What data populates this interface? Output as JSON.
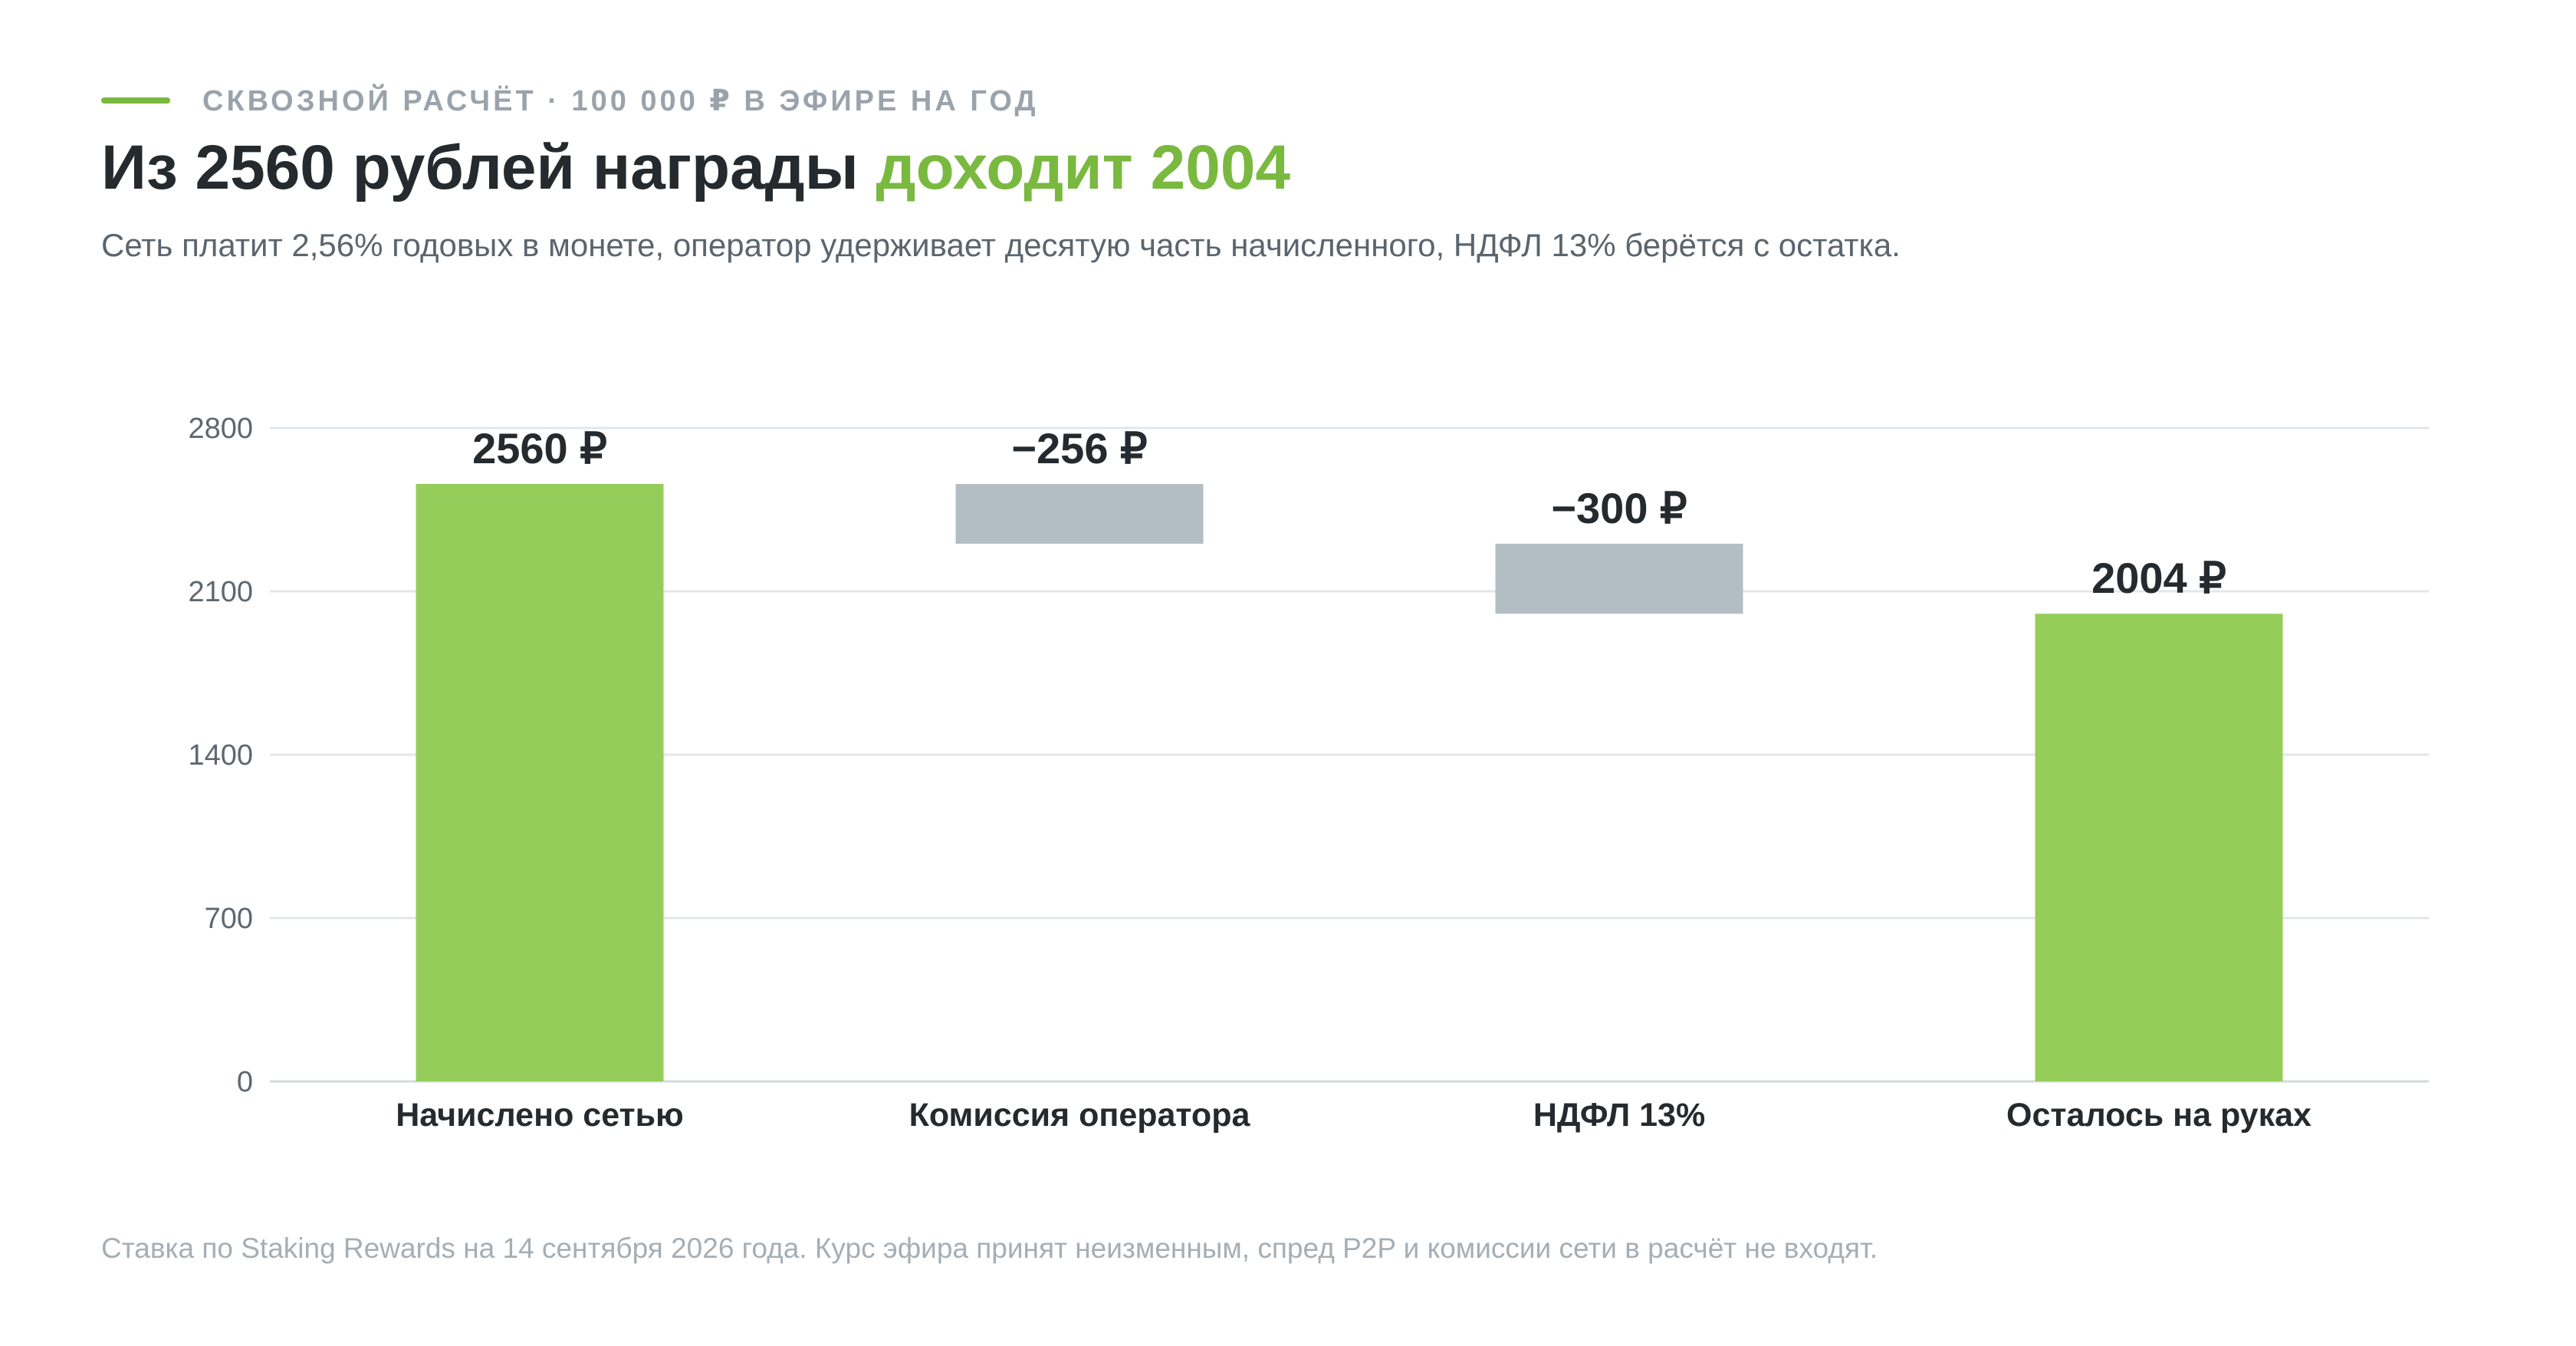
{
  "header": {
    "eyebrow": "СКВОЗНОЙ РАСЧЁТ · 100 000 ₽ В ЭФИРЕ НА ГОД",
    "title_main": "Из 2560 рублей награды ",
    "title_accent": "доходит 2004",
    "subtitle": "Сеть платит 2,56% годовых в монете, оператор удерживает десятую часть начисленного, НДФЛ 13% берётся с остатка."
  },
  "footnote": "Ставка по Staking Rewards на 14 сентября 2026 года. Курс эфира принят неизменным, спред P2P и комиссии сети в расчёт не входят.",
  "colors": {
    "accent": "#79b93f",
    "total_bar": "#95cd5a",
    "delta_bar": "#b3bec4",
    "grid": "#e3e7ea"
  },
  "chart_data": {
    "type": "bar",
    "subtype": "waterfall",
    "categories": [
      "Начислено сетью",
      "Комиссия оператора",
      "НДФЛ 13%",
      "Осталось на руках"
    ],
    "values": [
      2560,
      -256,
      -300,
      2004
    ],
    "kinds": [
      "total",
      "delta",
      "delta",
      "total"
    ],
    "data_labels": [
      "2560 ₽",
      "−256 ₽",
      "−300 ₽",
      "2004 ₽"
    ],
    "yticks": [
      0,
      700,
      1400,
      2100,
      2800
    ],
    "ylim": [
      0,
      2800
    ],
    "grid": true,
    "legend": "none"
  }
}
